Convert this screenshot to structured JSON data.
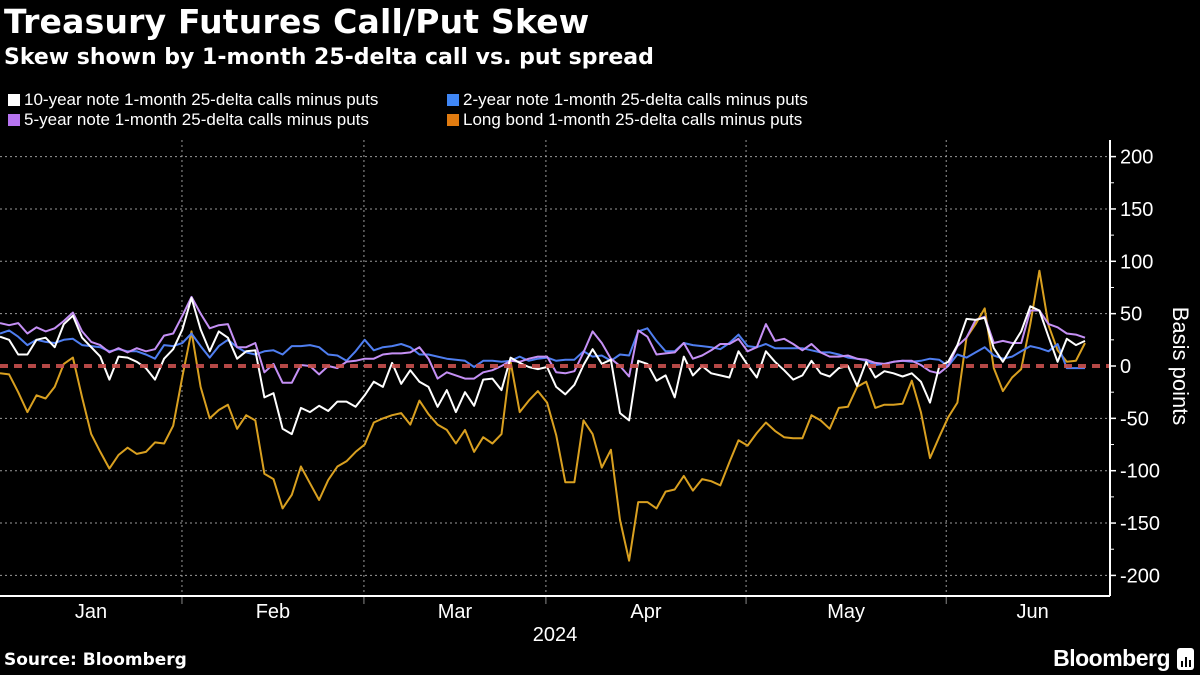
{
  "header": {
    "title": "Treasury Futures Call/Put Skew",
    "subtitle": "Skew shown by 1-month 25-delta call vs. put spread"
  },
  "footer": {
    "source": "Source: Bloomberg",
    "brand": "Bloomberg"
  },
  "chart_data": {
    "type": "line",
    "title": "Treasury Futures Call/Put Skew",
    "subtitle": "Skew shown by 1-month 25-delta call vs. put spread",
    "xlabel": "2024",
    "ylabel": "Basis points",
    "x_unit": "trading day index since start of 2024 (approx.)",
    "xlim": [
      0,
      122
    ],
    "ylim": [
      -210,
      215
    ],
    "yticks": [
      200,
      150,
      100,
      50,
      0,
      -50,
      -100,
      -150,
      -200
    ],
    "ytick_labels": [
      "200",
      "150",
      "100",
      "50",
      "0",
      "-50",
      "-100",
      "-150",
      "-200"
    ],
    "months": [
      {
        "label": "Jan",
        "start": 0,
        "end": 20
      },
      {
        "label": "Feb",
        "start": 20,
        "end": 40
      },
      {
        "label": "Mar",
        "start": 40,
        "end": 60
      },
      {
        "label": "Apr",
        "start": 60,
        "end": 82
      },
      {
        "label": "May",
        "start": 82,
        "end": 104
      },
      {
        "label": "Jun",
        "start": 104,
        "end": 123
      }
    ],
    "grid": true,
    "zero_line": {
      "value": 0,
      "color": "#c9504e",
      "style": "dashed"
    },
    "legend_position": "top-left",
    "series": [
      {
        "name": "Long bond 1-month 25-delta calls minus puts",
        "color": "#d9a020",
        "swatch": "#e07b10",
        "values": [
          -7,
          -8,
          -25,
          -44,
          -28,
          -31,
          -20,
          2,
          8,
          -30,
          -65,
          -82,
          -98,
          -85,
          -78,
          -84,
          -82,
          -73,
          -74,
          -57,
          -10,
          33,
          -20,
          -50,
          -42,
          -37,
          -60,
          -47,
          -52,
          -103,
          -108,
          -136,
          -123,
          -96,
          -112,
          -128,
          -109,
          -96,
          -91,
          -82,
          -75,
          -54,
          -50,
          -47,
          -45,
          -56,
          -33,
          -46,
          -56,
          -61,
          -74,
          -61,
          -82,
          -68,
          -74,
          -65,
          4,
          -44,
          -33,
          -24,
          -35,
          -66,
          -111,
          -111,
          -52,
          -65,
          -97,
          -80,
          -147,
          -186,
          -130,
          -130,
          -136,
          -120,
          -118,
          -105,
          -119,
          -108,
          -110,
          -114,
          -92,
          -71,
          -76,
          -64,
          -54,
          -62,
          -68,
          -69,
          -69,
          -47,
          -52,
          -60,
          -40,
          -39,
          -20,
          -15,
          -40,
          -37,
          -37,
          -36,
          -14,
          -44,
          -88,
          -68,
          -49,
          -35,
          27,
          40,
          55,
          -2,
          -24,
          -11,
          -3,
          40,
          91,
          39,
          15,
          4,
          5,
          22
        ]
      },
      {
        "name": "2-year note 1-month 25-delta calls minus puts",
        "color": "#4f7ef0",
        "swatch": "#3f86f5",
        "values": [
          31,
          34,
          28,
          20,
          25,
          23,
          22,
          25,
          26,
          20,
          19,
          18,
          14,
          16,
          14,
          14,
          11,
          7,
          20,
          19,
          22,
          31,
          19,
          8,
          19,
          25,
          18,
          13,
          11,
          14,
          15,
          11,
          19,
          19,
          20,
          18,
          11,
          10,
          5,
          14,
          25,
          15,
          18,
          19,
          21,
          18,
          11,
          11,
          9,
          7,
          6,
          5,
          -1,
          5,
          5,
          4,
          5,
          9,
          5,
          7,
          8,
          5,
          6,
          6,
          14,
          9,
          10,
          5,
          11,
          10,
          33,
          36,
          24,
          14,
          14,
          22,
          20,
          19,
          18,
          16,
          22,
          30,
          19,
          18,
          21,
          17,
          17,
          17,
          17,
          15,
          13,
          13,
          11,
          8,
          7,
          5,
          1,
          2,
          4,
          5,
          4,
          5,
          7,
          6,
          0,
          11,
          8,
          13,
          18,
          10,
          7,
          9,
          14,
          19,
          17,
          14,
          21,
          -2,
          -2,
          -2
        ]
      },
      {
        "name": "5-year note 1-month 25-delta calls minus puts",
        "color": "#c590f5",
        "swatch": "#b774f0",
        "values": [
          41,
          39,
          41,
          31,
          37,
          33,
          36,
          43,
          51,
          33,
          23,
          20,
          13,
          17,
          13,
          17,
          14,
          16,
          29,
          31,
          48,
          66,
          50,
          36,
          39,
          40,
          18,
          18,
          22,
          -6,
          2,
          -16,
          -16,
          1,
          0,
          -8,
          0,
          -2,
          4,
          5,
          7,
          7,
          11,
          12,
          12,
          13,
          18,
          7,
          -12,
          -6,
          -9,
          -12,
          -12,
          -6,
          -4,
          0,
          5,
          4,
          7,
          9,
          9,
          -6,
          -7,
          -5,
          13,
          33,
          22,
          7,
          0,
          -10,
          34,
          28,
          11,
          12,
          13,
          22,
          7,
          10,
          15,
          21,
          21,
          26,
          14,
          18,
          40,
          24,
          26,
          21,
          15,
          21,
          13,
          9,
          9,
          10,
          7,
          6,
          3,
          2,
          4,
          5,
          5,
          1,
          -5,
          -7,
          0,
          19,
          27,
          44,
          47,
          22,
          24,
          22,
          22,
          53,
          53,
          40,
          37,
          31,
          30,
          27
        ]
      },
      {
        "name": "10-year note 1-month 25-delta calls minus puts",
        "color": "#ffffff",
        "swatch": "#ffffff",
        "values": [
          28,
          25,
          11,
          11,
          25,
          27,
          18,
          40,
          48,
          27,
          18,
          9,
          -13,
          9,
          8,
          4,
          -2,
          -13,
          7,
          16,
          35,
          65,
          35,
          14,
          33,
          27,
          7,
          14,
          15,
          -30,
          -26,
          -60,
          -65,
          -40,
          -44,
          -38,
          -43,
          -34,
          -34,
          -39,
          -28,
          -15,
          -20,
          3,
          -17,
          -4,
          -15,
          -20,
          -39,
          -23,
          -44,
          -25,
          -38,
          -13,
          -12,
          -23,
          8,
          3,
          -1,
          -3,
          -1,
          -20,
          -27,
          -18,
          1,
          16,
          2,
          6,
          -45,
          -52,
          5,
          2,
          -14,
          -9,
          -30,
          9,
          -9,
          0,
          -7,
          -9,
          -11,
          14,
          1,
          -11,
          14,
          4,
          -4,
          -13,
          -9,
          5,
          -7,
          -10,
          -2,
          0,
          -19,
          4,
          -11,
          -5,
          -7,
          -10,
          -7,
          -15,
          -35,
          -1,
          4,
          20,
          45,
          44,
          46,
          17,
          4,
          19,
          33,
          57,
          53,
          28,
          4,
          26,
          20,
          24
        ]
      }
    ],
    "legend_order": [
      3,
      1,
      2,
      0
    ]
  }
}
